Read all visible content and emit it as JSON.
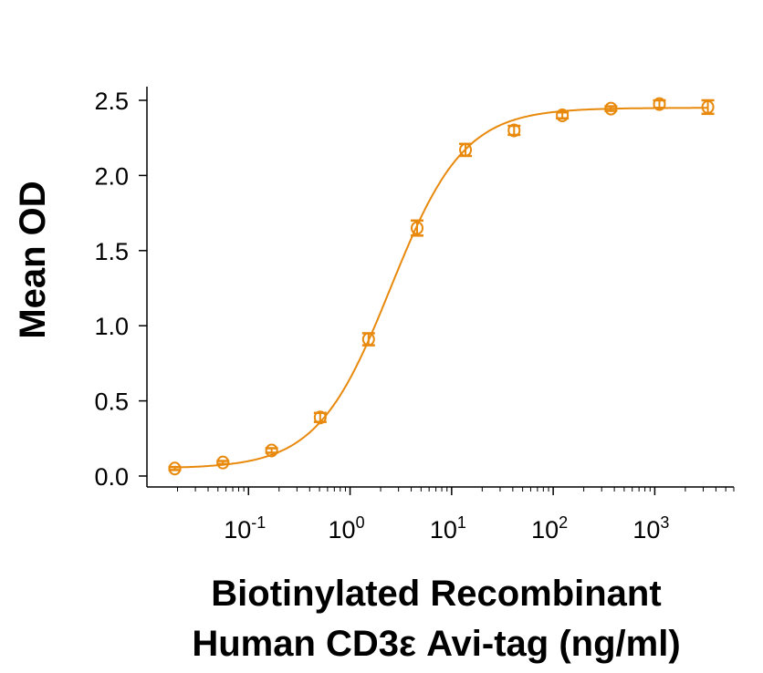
{
  "chart_data": {
    "type": "scatter",
    "xlabel_lines": [
      "Biotinylated Recombinant",
      "Human CD3ε Avi-tag (ng/ml)"
    ],
    "ylabel": "Mean OD",
    "x_scale": "log",
    "xlim": [
      0.01,
      6000
    ],
    "ylim": [
      0,
      2.6
    ],
    "x_ticks": [
      {
        "value": 0.1,
        "base": "10",
        "exp": "-1"
      },
      {
        "value": 1,
        "base": "10",
        "exp": "0"
      },
      {
        "value": 10,
        "base": "10",
        "exp": "1"
      },
      {
        "value": 100,
        "base": "10",
        "exp": "2"
      },
      {
        "value": 1000,
        "base": "10",
        "exp": "3"
      }
    ],
    "y_ticks": [
      {
        "value": 0,
        "label": "0.0"
      },
      {
        "value": 0.5,
        "label": "0.5"
      },
      {
        "value": 1,
        "label": "1.0"
      },
      {
        "value": 1.5,
        "label": "1.5"
      },
      {
        "value": 2,
        "label": "2.0"
      },
      {
        "value": 2.5,
        "label": "2.5"
      }
    ],
    "grid": false,
    "color": "#E8890C",
    "marker": "open-circle",
    "fit_line": "sigmoidal curve",
    "points": [
      {
        "x": 0.0188,
        "y": 0.05,
        "err": 0.01
      },
      {
        "x": 0.056,
        "y": 0.09,
        "err": 0.01
      },
      {
        "x": 0.169,
        "y": 0.17,
        "err": 0.015
      },
      {
        "x": 0.508,
        "y": 0.39,
        "err": 0.03
      },
      {
        "x": 1.52,
        "y": 0.91,
        "err": 0.04
      },
      {
        "x": 4.57,
        "y": 1.65,
        "err": 0.05
      },
      {
        "x": 13.7,
        "y": 2.17,
        "err": 0.04
      },
      {
        "x": 41.2,
        "y": 2.3,
        "err": 0.03
      },
      {
        "x": 123,
        "y": 2.4,
        "err": 0.02
      },
      {
        "x": 370,
        "y": 2.445,
        "err": 0.015
      },
      {
        "x": 1111,
        "y": 2.475,
        "err": 0.025
      },
      {
        "x": 3333,
        "y": 2.455,
        "err": 0.045
      }
    ]
  }
}
